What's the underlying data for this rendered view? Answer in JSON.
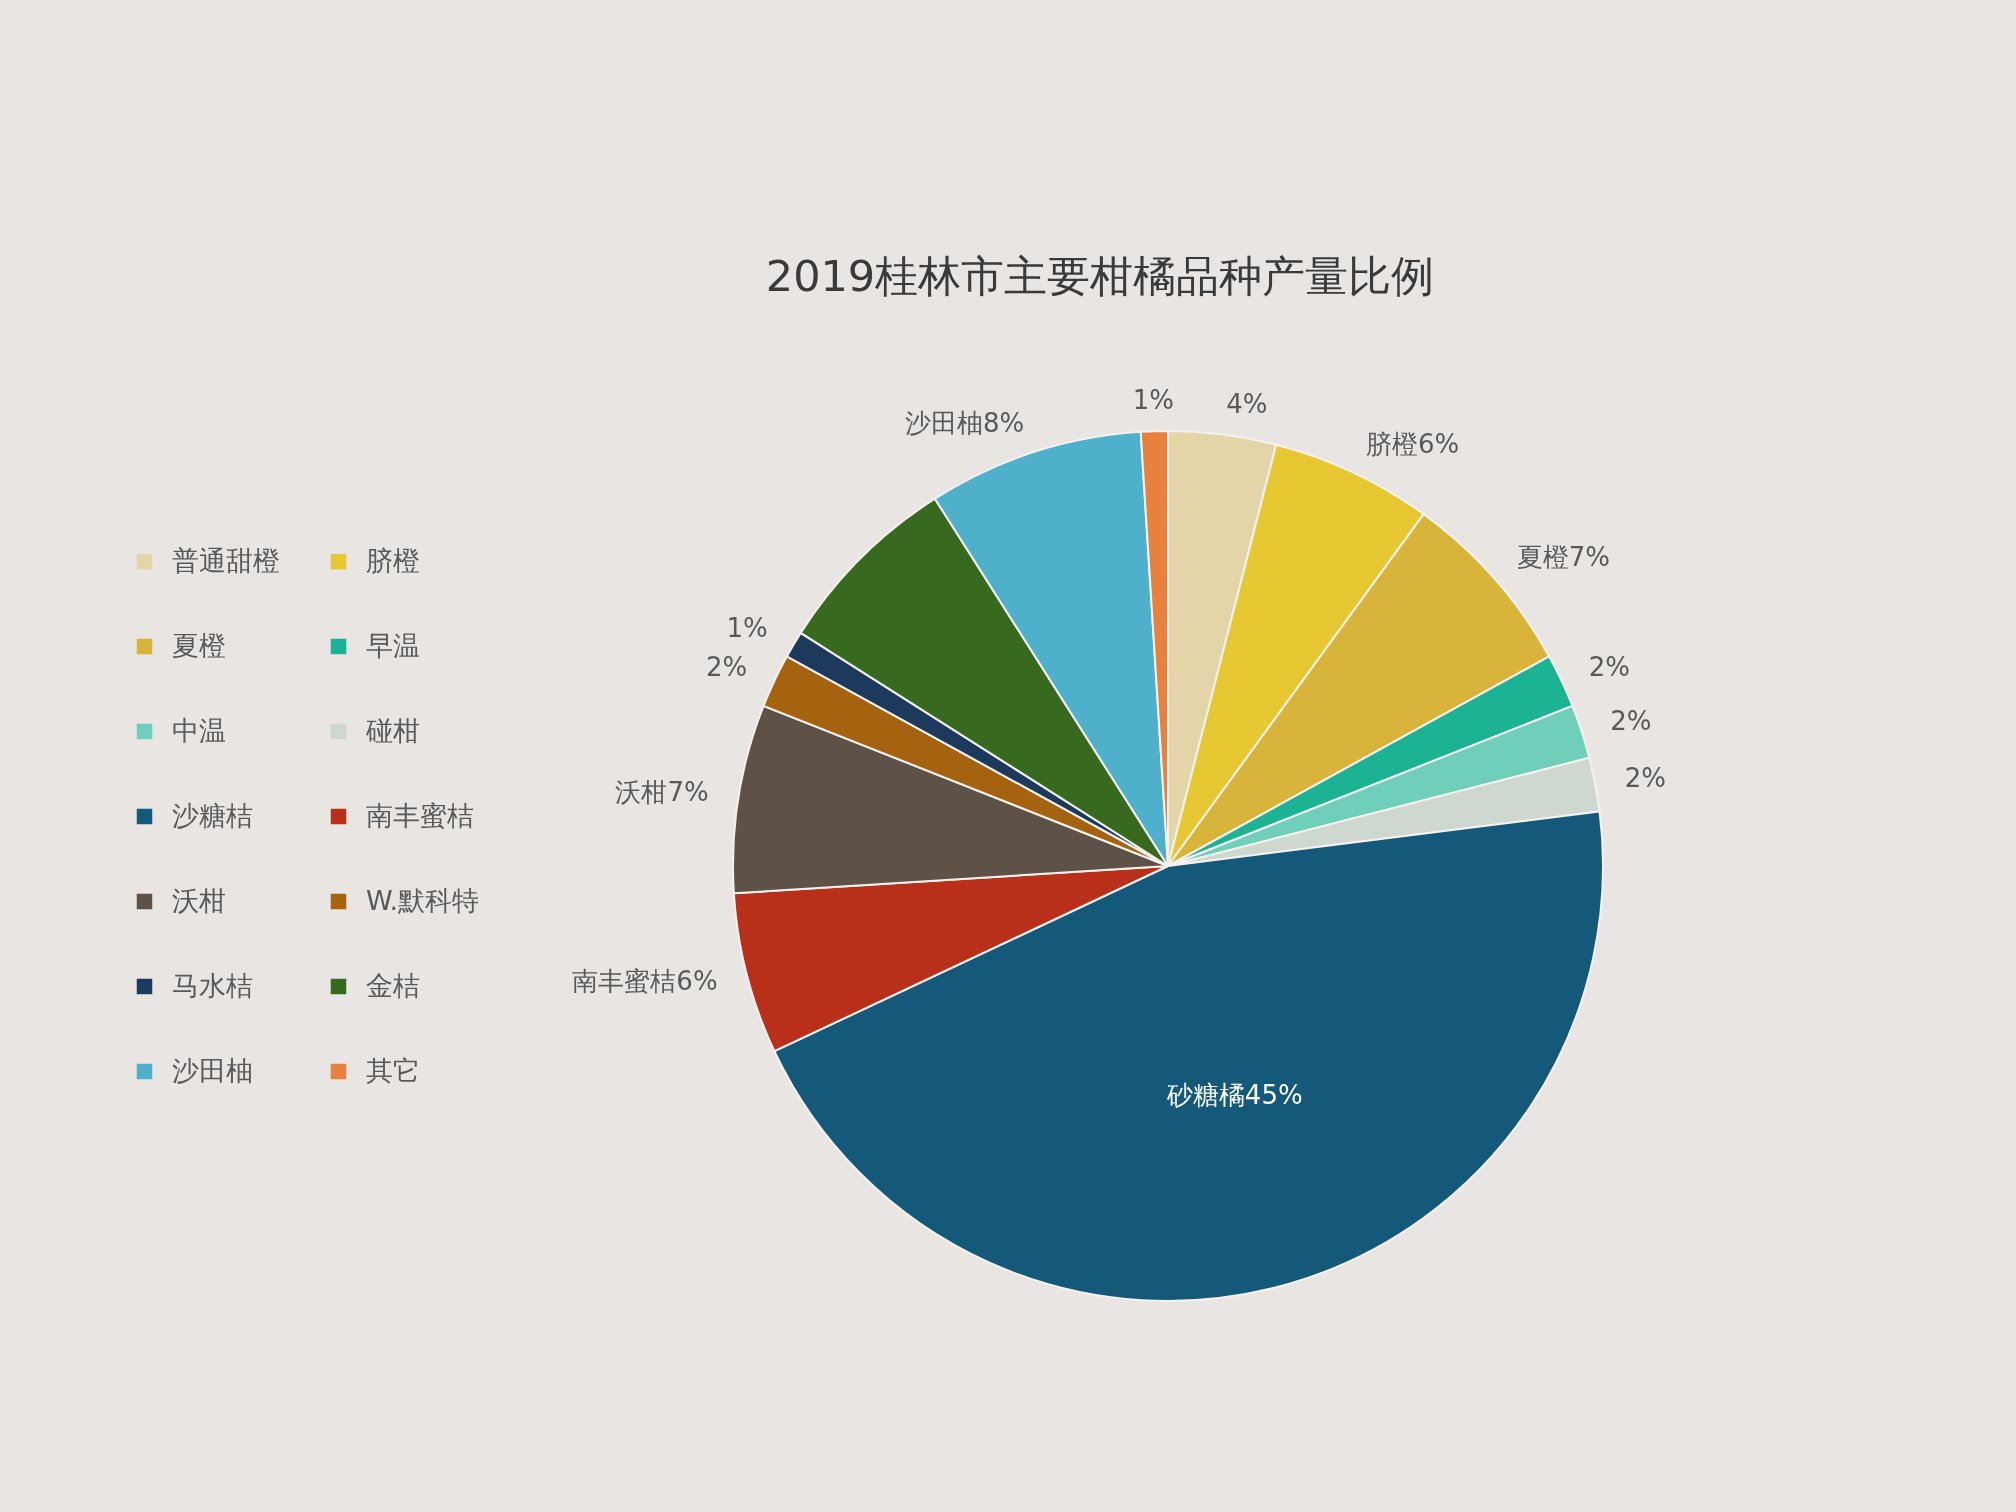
{
  "chart_data": {
    "type": "pie",
    "title": "2019桂林市主要柑橘品种产量比例",
    "categories": [
      "普通甜橙",
      "脐橙",
      "夏橙",
      "早温",
      "中温",
      "碰柑",
      "沙糖桔",
      "南丰蜜桔",
      "沃柑",
      "W.默科特",
      "马水桔",
      "金桔",
      "沙田柚",
      "其它"
    ],
    "values": [
      4,
      6,
      7,
      2,
      2,
      2,
      45,
      6,
      7,
      2,
      1,
      7,
      8,
      1
    ],
    "colors": [
      "#e4d5a8",
      "#e8c832",
      "#d9b43a",
      "#1bb394",
      "#6fcfba",
      "#cfd8cf",
      "#14587a",
      "#b8301a",
      "#5e5148",
      "#a5620f",
      "#1d3a5c",
      "#376a1f",
      "#4fb0cc",
      "#e8813e"
    ],
    "value_labels": [
      "4%",
      "脐橙6%",
      "夏橙7%",
      "2%",
      "2%",
      "2%",
      "砂糖橘45%",
      "南丰蜜桔6%",
      "沃柑7%",
      "2%",
      "1%",
      null,
      "沙田柚8%",
      "1%"
    ],
    "legend": "left"
  }
}
